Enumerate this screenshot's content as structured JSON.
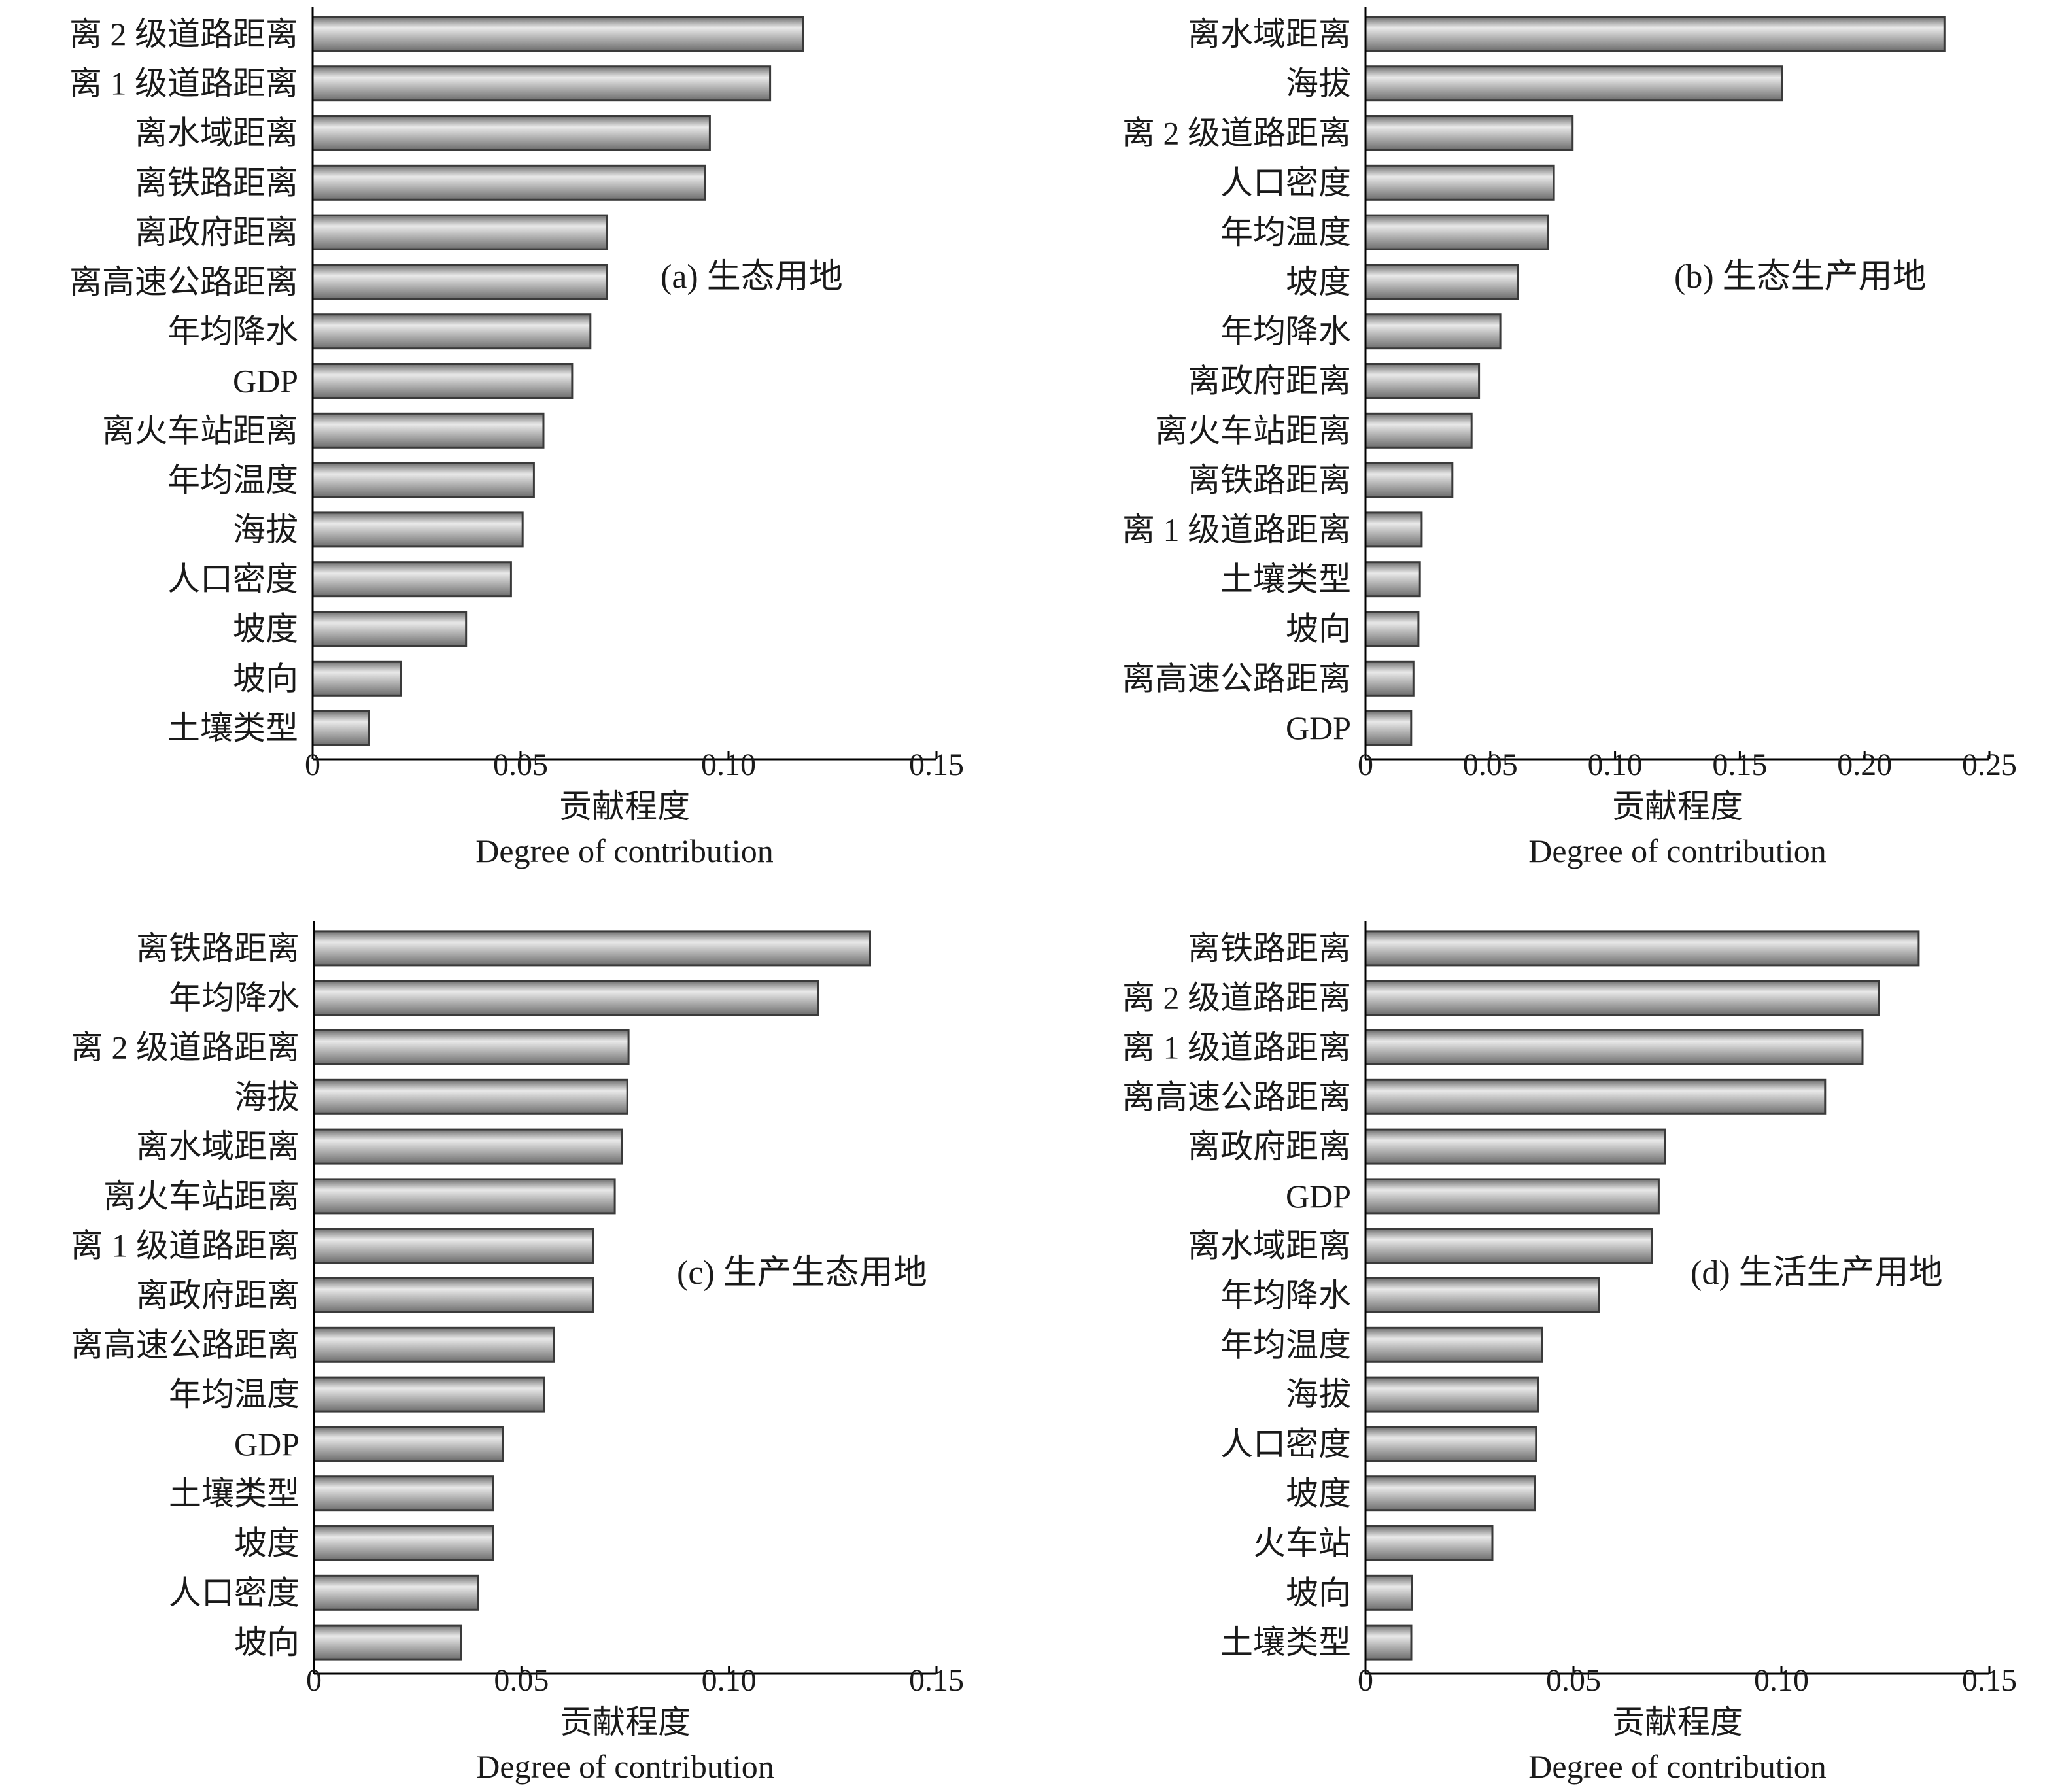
{
  "colors": {
    "bar_light": "#e9e9e9",
    "bar_mid": "#b6b6b6",
    "bar_dark": "#6e6e6e",
    "bar_edge": "#3a3a3a",
    "axis": "#000000",
    "text": "#1a1a1a"
  },
  "chart_data": [
    {
      "type": "bar",
      "orientation": "horizontal",
      "annotation": "(a) 生态用地",
      "xlabel": "贡献程度",
      "xlabel_en": "Degree of contribution",
      "xlim": [
        0,
        0.15
      ],
      "xticks": [
        0,
        0.05,
        0.1,
        0.15
      ],
      "xtick_labels": [
        "0",
        "0.05",
        "0.10",
        "0.15"
      ],
      "categories": [
        "离 2 级道路距离",
        "离 1 级道路距离",
        "离水域距离",
        "离铁路距离",
        "离政府距离",
        "离高速公路距离",
        "年均降水",
        "GDP",
        "离火车站距离",
        "年均温度",
        "海拔",
        "人口密度",
        "坡度",
        "坡向",
        "土壤类型"
      ],
      "values": [
        0.118,
        0.11,
        0.0955,
        0.0943,
        0.0708,
        0.0708,
        0.0668,
        0.0624,
        0.0555,
        0.0532,
        0.0505,
        0.0477,
        0.0369,
        0.0212,
        0.0136
      ]
    },
    {
      "type": "bar",
      "orientation": "horizontal",
      "annotation": "(b) 生态生产用地",
      "xlabel": "贡献程度",
      "xlabel_en": "Degree of contribution",
      "xlim": [
        0,
        0.25
      ],
      "xticks": [
        0,
        0.05,
        0.1,
        0.15,
        0.2,
        0.25
      ],
      "xtick_labels": [
        "0",
        "0.05",
        "0.10",
        "0.15",
        "0.20",
        "0.25"
      ],
      "categories": [
        "离水域距离",
        "海拔",
        "离 2 级道路距离",
        "人口密度",
        "年均温度",
        "坡度",
        "年均降水",
        "离政府距离",
        "离火车站距离",
        "离铁路距离",
        "离 1 级道路距离",
        "土壤类型",
        "坡向",
        "离高速公路距离",
        "GDP"
      ],
      "values": [
        0.232,
        0.167,
        0.083,
        0.0755,
        0.073,
        0.061,
        0.054,
        0.0455,
        0.0425,
        0.0348,
        0.0225,
        0.0218,
        0.0212,
        0.0192,
        0.0183
      ]
    },
    {
      "type": "bar",
      "orientation": "horizontal",
      "annotation": "(c) 生产生态用地",
      "xlabel": "贡献程度",
      "xlabel_en": "Degree of contribution",
      "xlim": [
        0,
        0.15
      ],
      "xticks": [
        0,
        0.05,
        0.1,
        0.15
      ],
      "xtick_labels": [
        "0",
        "0.05",
        "0.10",
        "0.15"
      ],
      "categories": [
        "离铁路距离",
        "年均降水",
        "离 2 级道路距离",
        "海拔",
        "离水域距离",
        "离火车站距离",
        "离 1 级道路距离",
        "离政府距离",
        "离高速公路距离",
        "年均温度",
        "GDP",
        "土壤类型",
        "坡度",
        "人口密度",
        "坡向"
      ],
      "values": [
        0.134,
        0.1215,
        0.0758,
        0.0755,
        0.0742,
        0.0725,
        0.0672,
        0.0672,
        0.0578,
        0.0555,
        0.0455,
        0.0432,
        0.0432,
        0.0395,
        0.0355
      ]
    },
    {
      "type": "bar",
      "orientation": "horizontal",
      "annotation": "(d) 生活生产用地",
      "xlabel": "贡献程度",
      "xlabel_en": "Degree of contribution",
      "xlim": [
        0,
        0.15
      ],
      "xticks": [
        0,
        0.05,
        0.1,
        0.15
      ],
      "xtick_labels": [
        "0",
        "0.05",
        "0.10",
        "0.15"
      ],
      "categories": [
        "离铁路距离",
        "离 2 级道路距离",
        "离 1 级道路距离",
        "离高速公路距离",
        "离政府距离",
        "GDP",
        "离水域距离",
        "年均降水",
        "年均温度",
        "海拔",
        "人口密度",
        "坡度",
        "火车站",
        "坡向",
        "土壤类型"
      ],
      "values": [
        0.133,
        0.1235,
        0.1195,
        0.1105,
        0.072,
        0.0705,
        0.0688,
        0.0562,
        0.0425,
        0.0415,
        0.041,
        0.0408,
        0.0305,
        0.0112,
        0.011
      ]
    }
  ]
}
